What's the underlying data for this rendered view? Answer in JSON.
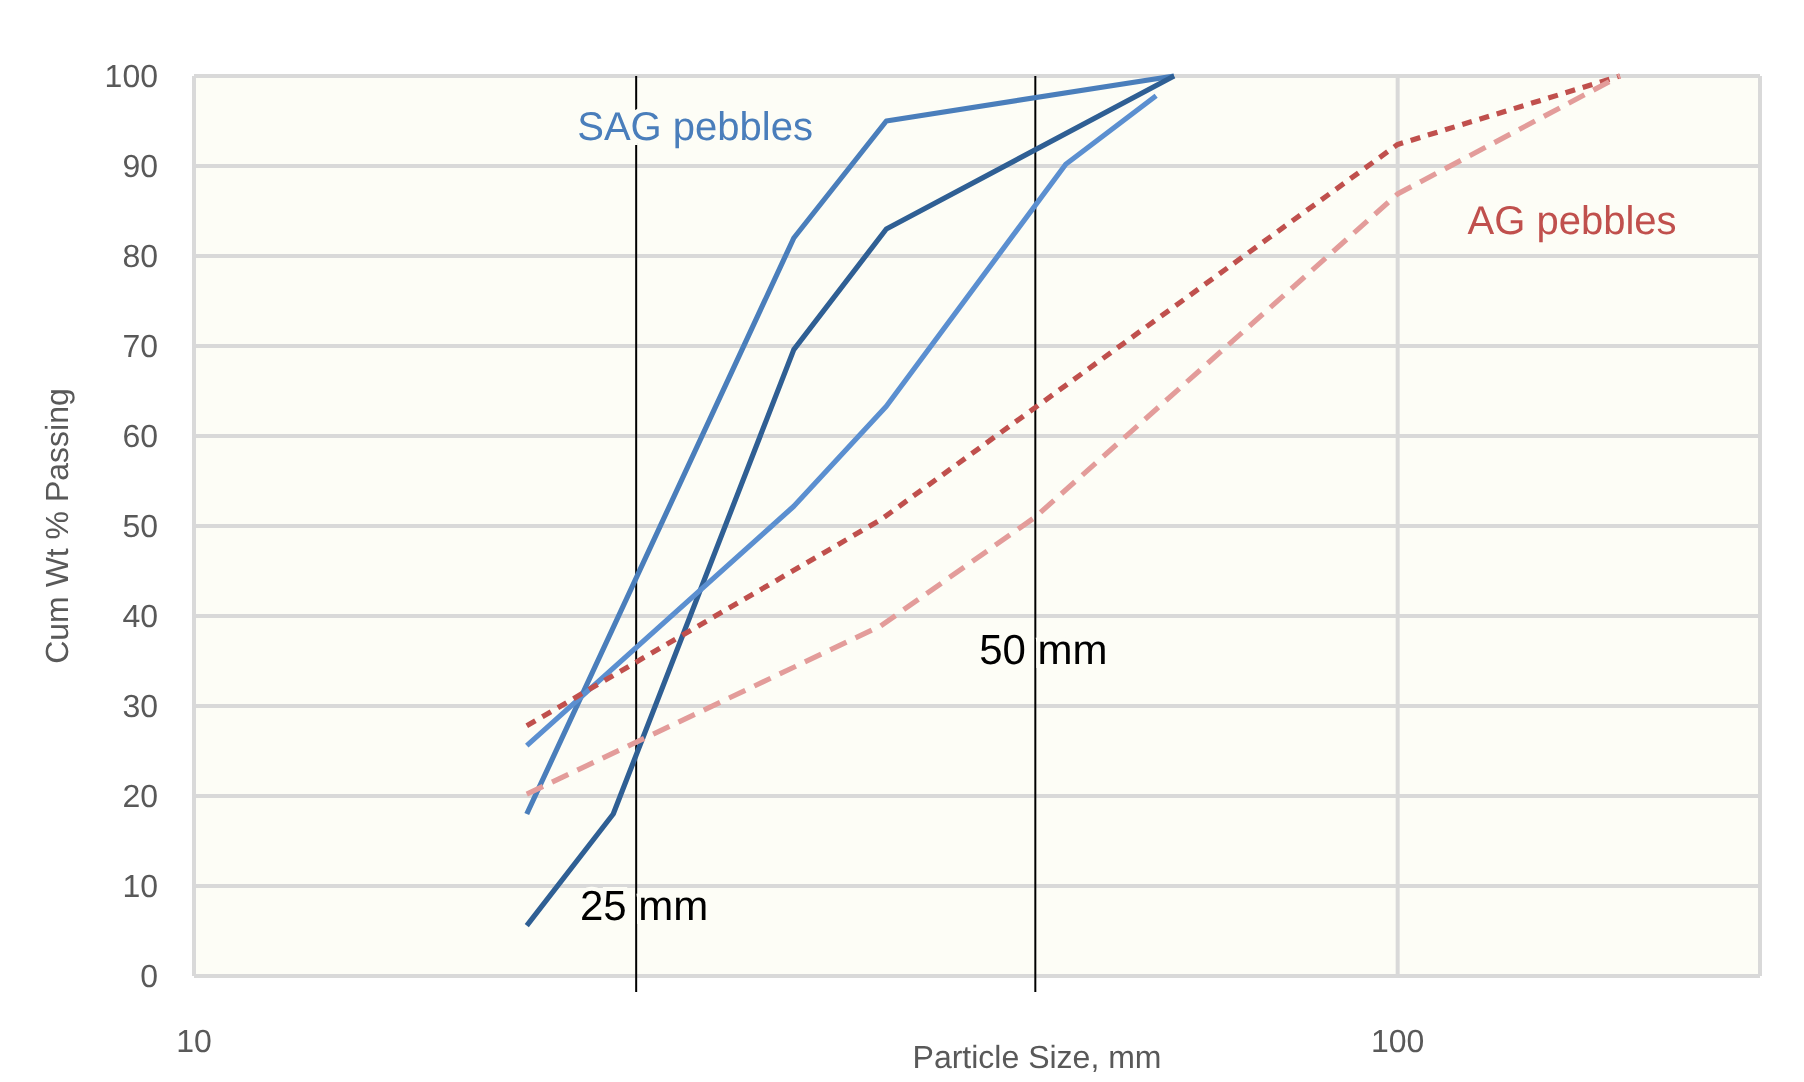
{
  "chart_data": {
    "type": "line",
    "xlabel": "Particle Size, mm",
    "ylabel": "Cum Wt % Passing",
    "log": "x",
    "xlim": [
      10,
      200
    ],
    "xticks": [
      10,
      100
    ],
    "ylim": [
      0,
      100
    ],
    "yticks": [
      0,
      10,
      20,
      30,
      40,
      50,
      60,
      70,
      80,
      90,
      100
    ],
    "grid": true,
    "marker": "none",
    "series": [
      {
        "color": "#4a7ebb",
        "line_style": "solid",
        "x": [
          18.9,
          31.5,
          37.6,
          65.2
        ],
        "values": [
          18,
          82,
          95,
          100
        ]
      },
      {
        "color": "#2f5f94",
        "line_style": "solid",
        "x": [
          18.9,
          22.3,
          31.5,
          37.6,
          65.2
        ],
        "values": [
          5.6,
          18,
          69.6,
          83,
          100
        ]
      },
      {
        "color": "#5b8fd0",
        "line_style": "solid",
        "x": [
          18.9,
          31.5,
          37.6,
          53,
          63
        ],
        "values": [
          25.6,
          52.2,
          63.3,
          90.2,
          97.8
        ]
      },
      {
        "color": "#c0504d",
        "line_style": "dotted",
        "x": [
          18.9,
          37.2,
          100,
          153
        ],
        "values": [
          27.8,
          50.7,
          92.4,
          100
        ]
      },
      {
        "color": "#e39c9a",
        "line_style": "dashed",
        "x": [
          18.9,
          37.2,
          50,
          100,
          153
        ],
        "values": [
          20.2,
          38.9,
          51,
          86.9,
          100
        ]
      }
    ],
    "ref_lines": [
      {
        "axis": "x",
        "value": 23.3,
        "label": "25 mm",
        "color": "#000000"
      },
      {
        "axis": "x",
        "value": 50,
        "label": "50 mm",
        "color": "#000000"
      }
    ],
    "annotations": [
      "SAG pebbles",
      "AG pebbles"
    ]
  }
}
